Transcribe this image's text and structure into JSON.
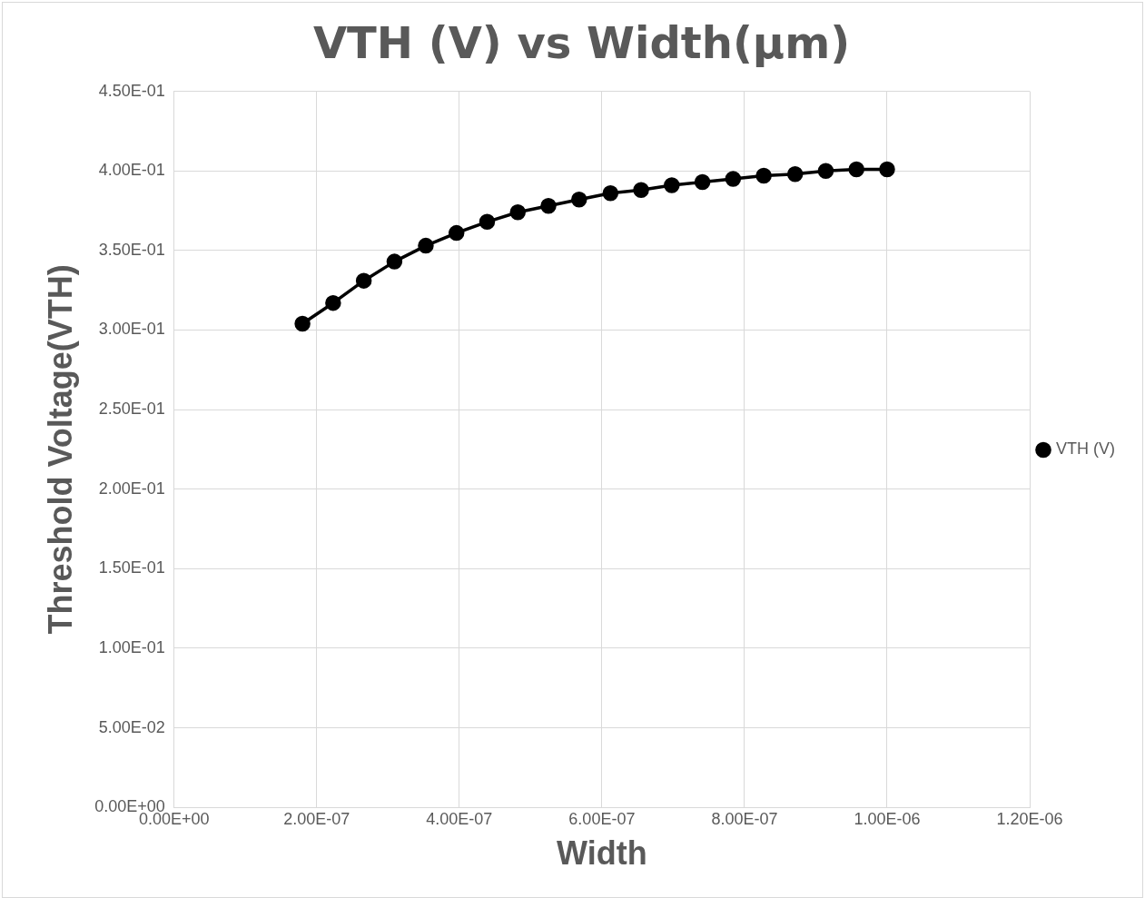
{
  "chart_data": {
    "type": "line",
    "title": "VTH (V) vs Width(μm)",
    "xlabel": "Width",
    "ylabel": "Threshold Voltage(VTH)",
    "x": [
      1.8e-07,
      2.23e-07,
      2.66e-07,
      3.09e-07,
      3.53e-07,
      3.96e-07,
      4.39e-07,
      4.82e-07,
      5.25e-07,
      5.68e-07,
      6.12e-07,
      6.55e-07,
      6.98e-07,
      7.41e-07,
      7.84e-07,
      8.27e-07,
      8.71e-07,
      9.14e-07,
      9.57e-07,
      1e-06
    ],
    "series": [
      {
        "name": "VTH (V)",
        "color": "#000000",
        "values": [
          0.304,
          0.317,
          0.331,
          0.343,
          0.353,
          0.361,
          0.368,
          0.374,
          0.378,
          0.382,
          0.386,
          0.388,
          0.391,
          0.393,
          0.395,
          0.397,
          0.398,
          0.4,
          0.401,
          0.401
        ]
      }
    ],
    "xlim": [
      0,
      1.2e-06
    ],
    "xticks": [
      {
        "value": 0,
        "label": "0.00E+00"
      },
      {
        "value": 2e-07,
        "label": "2.00E-07"
      },
      {
        "value": 4e-07,
        "label": "4.00E-07"
      },
      {
        "value": 6e-07,
        "label": "6.00E-07"
      },
      {
        "value": 8e-07,
        "label": "8.00E-07"
      },
      {
        "value": 1e-06,
        "label": "1.00E-06"
      },
      {
        "value": 1.2e-06,
        "label": "1.20E-06"
      }
    ],
    "ylim": [
      0,
      0.45
    ],
    "yticks": [
      {
        "value": 0,
        "label": "0.00E+00"
      },
      {
        "value": 0.05,
        "label": "5.00E-02"
      },
      {
        "value": 0.1,
        "label": "1.00E-01"
      },
      {
        "value": 0.15,
        "label": "1.50E-01"
      },
      {
        "value": 0.2,
        "label": "2.00E-01"
      },
      {
        "value": 0.25,
        "label": "2.50E-01"
      },
      {
        "value": 0.3,
        "label": "3.00E-01"
      },
      {
        "value": 0.35,
        "label": "3.50E-01"
      },
      {
        "value": 0.4,
        "label": "4.00E-01"
      },
      {
        "value": 0.45,
        "label": "4.50E-01"
      }
    ],
    "grid": true,
    "legend": "right",
    "marker": "circle",
    "line_style": "solid"
  }
}
